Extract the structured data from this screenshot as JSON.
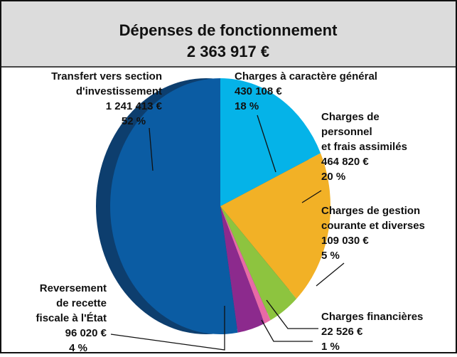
{
  "chart_data": {
    "type": "pie",
    "title": "Dépenses de fonctionnement",
    "total": {
      "value": 2363917,
      "label": "2 363 917 €"
    },
    "categories": [
      [
        "Transfert vers section",
        "d'investissement"
      ],
      [
        "Charges à caractère général"
      ],
      [
        "Charges de",
        "personnel",
        "et frais assimilés"
      ],
      [
        "Charges de gestion",
        "courante et diverses"
      ],
      [
        "Charges financières"
      ],
      [
        "Reversement",
        "de recette",
        "fiscale à l'État"
      ]
    ],
    "values": [
      1241413,
      430108,
      464820,
      109030,
      22526,
      96020
    ],
    "value_labels": [
      "1 241 413 €",
      "430 108 €",
      "464 820 €",
      "109 030 €",
      "22 526 €",
      "96 020 €"
    ],
    "percentages": [
      52,
      18,
      20,
      5,
      1,
      4
    ],
    "percentage_labels": [
      "52 %",
      "18 %",
      "20 %",
      "5 %",
      "1 %",
      "4 %"
    ],
    "colors": [
      "#0b5ca3",
      "#05b3e8",
      "#f2b126",
      "#8dc43f",
      "#e86aa6",
      "#8c2a8d"
    ]
  }
}
